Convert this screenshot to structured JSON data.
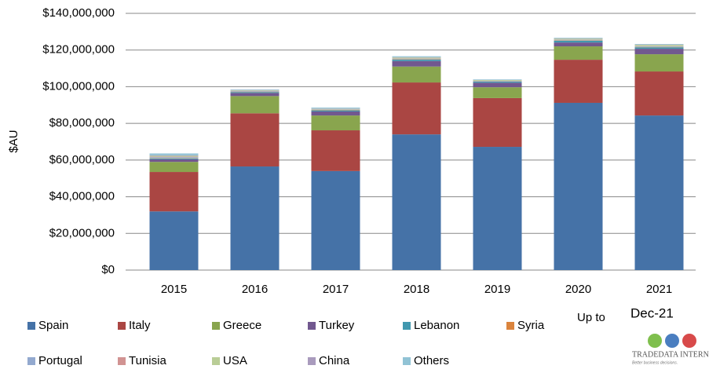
{
  "chart_data": {
    "type": "stacked_bar",
    "y_label": "$AU",
    "categories": [
      "2015",
      "2016",
      "2017",
      "2018",
      "2019",
      "2020",
      "2021"
    ],
    "ylim": [
      0,
      140000000
    ],
    "yticks": [
      {
        "value": 0,
        "label": "$0"
      },
      {
        "value": 20000000,
        "label": "$20,000,000"
      },
      {
        "value": 40000000,
        "label": "$40,000,000"
      },
      {
        "value": 60000000,
        "label": "$60,000,000"
      },
      {
        "value": 80000000,
        "label": "$80,000,000"
      },
      {
        "value": 100000000,
        "label": "$100,000,000"
      },
      {
        "value": 120000000,
        "label": "$120,000,000"
      },
      {
        "value": 140000000,
        "label": "$140,000,000"
      }
    ],
    "grid": true,
    "series": [
      {
        "name": "Spain",
        "color": "#4572a7",
        "values": [
          32000000,
          56500000,
          54000000,
          74000000,
          67200000,
          91200000,
          84300000
        ]
      },
      {
        "name": "Italy",
        "color": "#aa4643",
        "values": [
          21500000,
          29000000,
          22200000,
          28300000,
          26600000,
          23500000,
          24000000
        ]
      },
      {
        "name": "Greece",
        "color": "#89a54e",
        "values": [
          5500000,
          9400000,
          8100000,
          8700000,
          5900000,
          7300000,
          9400000
        ]
      },
      {
        "name": "Turkey",
        "color": "#71588f",
        "values": [
          1400000,
          1700000,
          2200000,
          3000000,
          2500000,
          2100000,
          3000000
        ]
      },
      {
        "name": "Lebanon",
        "color": "#4198af",
        "values": [
          500000,
          500000,
          600000,
          800000,
          600000,
          1000000,
          800000
        ]
      },
      {
        "name": "Syria",
        "color": "#db843d",
        "values": [
          200000,
          200000,
          200000,
          200000,
          100000,
          200000,
          200000
        ]
      },
      {
        "name": "Portugal",
        "color": "#93a9cf",
        "values": [
          500000,
          300000,
          200000,
          300000,
          200000,
          300000,
          300000
        ]
      },
      {
        "name": "Tunisia",
        "color": "#d19392",
        "values": [
          200000,
          100000,
          100000,
          100000,
          100000,
          100000,
          100000
        ]
      },
      {
        "name": "USA",
        "color": "#b9cd96",
        "values": [
          500000,
          300000,
          300000,
          500000,
          400000,
          500000,
          700000
        ]
      },
      {
        "name": "China",
        "color": "#a99bbd",
        "values": [
          300000,
          200000,
          200000,
          200000,
          100000,
          200000,
          200000
        ]
      },
      {
        "name": "Others",
        "color": "#91c3d5",
        "values": [
          1000000,
          300000,
          500000,
          500000,
          300000,
          300000,
          300000
        ]
      }
    ],
    "annotations": [
      "Up to",
      "Dec-21"
    ],
    "logo": {
      "name": "TRADEDATA INTERNATIONAL",
      "tagline": "Better business decisions."
    }
  }
}
